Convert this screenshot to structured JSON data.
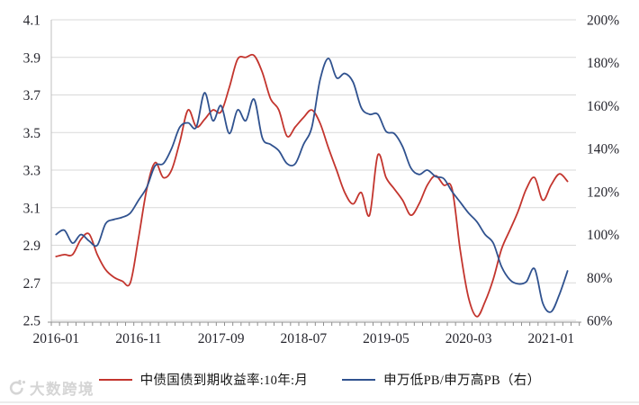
{
  "watermark": {
    "text": "大数跨境"
  },
  "legend": {
    "series1": "中债国债到期收益率:10年:月",
    "series2": "申万低PB/申万高PB（右）"
  },
  "chart_data": {
    "type": "line",
    "title": "",
    "grid": true,
    "legend_position": "bottom",
    "smoothed_lines": true,
    "colors": {
      "bond_yield": "#C3352E",
      "pb_ratio": "#30528F",
      "gridline": "#D9D9D9",
      "axis": "#8f8f8f"
    },
    "x_tick_labels": [
      "2016-01",
      "2016-11",
      "2017-09",
      "2018-07",
      "2019-05",
      "2020-03",
      "2021-01"
    ],
    "x_tick_interval_months": 10,
    "left_axis": {
      "min": 2.5,
      "max": 4.1,
      "ticks": [
        4.1,
        3.9,
        3.7,
        3.5,
        3.3,
        3.1,
        2.9,
        2.7,
        2.5
      ]
    },
    "right_axis": {
      "min": 60,
      "max": 200,
      "tick_values": [
        200,
        180,
        160,
        140,
        120,
        100,
        80,
        60
      ],
      "suffix": "%"
    },
    "months": [
      "2016-01",
      "2016-02",
      "2016-03",
      "2016-04",
      "2016-05",
      "2016-06",
      "2016-07",
      "2016-08",
      "2016-09",
      "2016-10",
      "2016-11",
      "2016-12",
      "2017-01",
      "2017-02",
      "2017-03",
      "2017-04",
      "2017-05",
      "2017-06",
      "2017-07",
      "2017-08",
      "2017-09",
      "2017-10",
      "2017-11",
      "2017-12",
      "2018-01",
      "2018-02",
      "2018-03",
      "2018-04",
      "2018-05",
      "2018-06",
      "2018-07",
      "2018-08",
      "2018-09",
      "2018-10",
      "2018-11",
      "2018-12",
      "2019-01",
      "2019-02",
      "2019-03",
      "2019-04",
      "2019-05",
      "2019-06",
      "2019-07",
      "2019-08",
      "2019-09",
      "2019-10",
      "2019-11",
      "2019-12",
      "2020-01",
      "2020-02",
      "2020-03",
      "2020-04",
      "2020-05",
      "2020-06",
      "2020-07",
      "2020-08",
      "2020-09",
      "2020-10",
      "2020-11",
      "2020-12",
      "2021-01",
      "2021-02",
      "2021-03"
    ],
    "series": [
      {
        "id": "bond-yield",
        "name": "中债国债到期收益率:10年:月",
        "axis": "left",
        "color": "#C3352E",
        "values": [
          2.84,
          2.85,
          2.85,
          2.93,
          2.96,
          2.85,
          2.77,
          2.73,
          2.71,
          2.7,
          2.94,
          3.2,
          3.34,
          3.26,
          3.3,
          3.45,
          3.62,
          3.53,
          3.57,
          3.62,
          3.61,
          3.74,
          3.89,
          3.9,
          3.91,
          3.82,
          3.68,
          3.62,
          3.48,
          3.53,
          3.58,
          3.62,
          3.55,
          3.42,
          3.3,
          3.18,
          3.12,
          3.18,
          3.06,
          3.38,
          3.26,
          3.2,
          3.14,
          3.06,
          3.12,
          3.22,
          3.27,
          3.22,
          3.2,
          2.87,
          2.62,
          2.52,
          2.6,
          2.72,
          2.88,
          2.98,
          3.08,
          3.2,
          3.26,
          3.14,
          3.22,
          3.28,
          3.24
        ]
      },
      {
        "id": "pb-ratio",
        "name": "申万低PB/申万高PB（右）",
        "axis": "right",
        "color": "#30528F",
        "values": [
          100,
          102,
          96,
          100,
          97,
          95,
          105,
          107,
          108,
          110,
          116,
          122,
          132,
          133,
          140,
          150,
          152,
          150,
          166,
          153,
          160,
          147,
          158,
          153,
          163,
          145,
          142,
          139,
          133,
          133,
          142,
          150,
          172,
          182,
          173,
          175,
          171,
          159,
          156,
          156,
          148,
          147,
          141,
          131,
          128,
          130,
          127,
          126,
          120,
          115,
          110,
          106,
          100,
          96,
          85,
          79,
          77,
          78,
          84,
          68,
          64,
          72,
          83
        ]
      }
    ]
  }
}
